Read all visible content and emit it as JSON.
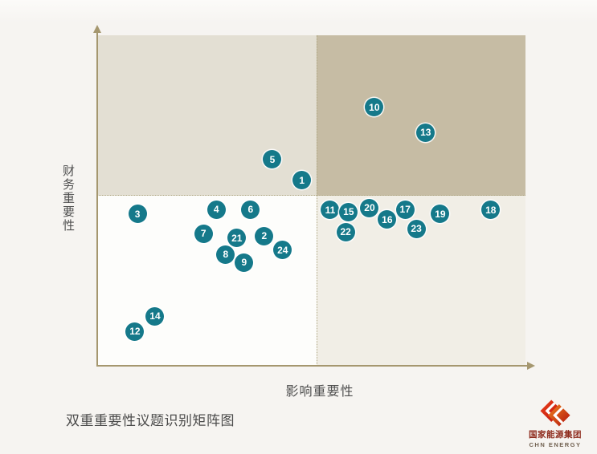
{
  "page": {
    "background_color": "#f6f4f1",
    "caption": "双重重要性议题识别矩阵图"
  },
  "chart_data": {
    "type": "scatter",
    "title": "双重重要性议题识别矩阵图",
    "xlabel": "影响重要性",
    "ylabel": "财务重要性",
    "x_range": [
      0,
      100
    ],
    "y_range": [
      0,
      100
    ],
    "grid": false,
    "legend": "none",
    "quadrant_divider": {
      "x": 51.2,
      "y": 51.5
    },
    "quadrant_colors": {
      "top_left": "#e3dfd3",
      "top_right": "#c6bca4",
      "bottom_left": "#fdfdfb",
      "bottom_right": "#f1eee6"
    },
    "axis_color": "#a5976f",
    "point_color": "#15798a",
    "points": [
      {
        "label": "5",
        "x": 40.9,
        "y": 62.4
      },
      {
        "label": "1",
        "x": 47.8,
        "y": 56.1
      },
      {
        "label": "3",
        "x": 9.4,
        "y": 45.9
      },
      {
        "label": "4",
        "x": 27.8,
        "y": 47.3
      },
      {
        "label": "6",
        "x": 35.8,
        "y": 47.3
      },
      {
        "label": "7",
        "x": 24.8,
        "y": 40.0
      },
      {
        "label": "2",
        "x": 39.0,
        "y": 39.3
      },
      {
        "label": "8",
        "x": 30.0,
        "y": 33.7
      },
      {
        "label": "21",
        "x": 32.6,
        "y": 38.6
      },
      {
        "label": "9",
        "x": 34.3,
        "y": 31.3
      },
      {
        "label": "24",
        "x": 43.3,
        "y": 35.0
      },
      {
        "label": "14",
        "x": 13.5,
        "y": 15.0
      },
      {
        "label": "12",
        "x": 8.8,
        "y": 10.4
      },
      {
        "label": "10",
        "x": 64.7,
        "y": 78.2
      },
      {
        "label": "13",
        "x": 76.7,
        "y": 70.6
      },
      {
        "label": "11",
        "x": 54.4,
        "y": 47.1
      },
      {
        "label": "15",
        "x": 58.7,
        "y": 46.6
      },
      {
        "label": "20",
        "x": 63.6,
        "y": 47.8
      },
      {
        "label": "17",
        "x": 71.9,
        "y": 47.3
      },
      {
        "label": "16",
        "x": 67.7,
        "y": 44.2
      },
      {
        "label": "19",
        "x": 80.1,
        "y": 45.9
      },
      {
        "label": "23",
        "x": 74.5,
        "y": 41.5
      },
      {
        "label": "22",
        "x": 58.0,
        "y": 40.5
      },
      {
        "label": "18",
        "x": 91.9,
        "y": 47.1
      }
    ]
  },
  "logo": {
    "company_cn": "国家能源集团",
    "company_en": "CHN ENERGY",
    "brand_red": "#c1271b"
  }
}
